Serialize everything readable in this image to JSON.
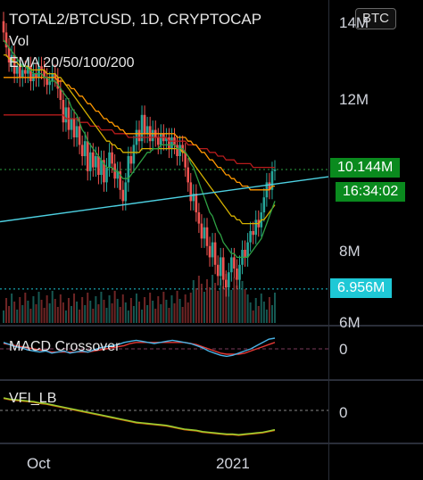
{
  "header": {
    "symbol": "TOTAL2/BTCUSD, 1D, CRYPTOCAP",
    "vol_label": "Vol",
    "ema_label": "EMA 20/50/100/200",
    "btc_badge": "BTC"
  },
  "price_axis": {
    "ticks": [
      "14M",
      "12M",
      "8M",
      "6M"
    ],
    "last_price_tag": "10.144M",
    "countdown_tag": "16:34:02",
    "support_tag": "6.956M"
  },
  "macd": {
    "label": "MACD Crossover",
    "zero_label": "0"
  },
  "vfi": {
    "label": "VFI_LB",
    "zero_label": "0"
  },
  "time_axis": {
    "ticks": [
      "Oct",
      "2021"
    ]
  },
  "colors": {
    "up": "#26a69a",
    "down": "#ef5350",
    "ema20": "#2ea043",
    "ema50": "#d4b000",
    "ema100": "#ff9800",
    "ema200": "#b71c1c",
    "trendline": "#4dd0e1",
    "last_price": "#0a8a1e",
    "support": "#1ec8d6",
    "macd_line": "#4ab3e6",
    "signal_line": "#e53935",
    "vfi_line": "#9acd32"
  },
  "chart_data": {
    "type": "candlestick",
    "title": "TOTAL2/BTCUSD, 1D, CRYPTOCAP",
    "timeframe": "1D",
    "ylabel_unit": "M",
    "y_ticks": [
      6,
      8,
      12,
      14
    ],
    "x_ticks": [
      "Oct",
      "2021"
    ],
    "last_price": 10.144,
    "support_level": 6.956,
    "overlays": [
      "EMA 20",
      "EMA 50",
      "EMA 100",
      "EMA 200"
    ],
    "indicators": [
      "Vol",
      "MACD Crossover",
      "VFI_LB"
    ],
    "close": [
      13.8,
      13.4,
      13.0,
      13.2,
      12.7,
      12.9,
      12.6,
      12.8,
      12.7,
      12.9,
      12.5,
      12.7,
      12.6,
      12.9,
      12.8,
      12.6,
      12.4,
      12.5,
      12.7,
      12.6,
      12.3,
      12.0,
      11.4,
      11.8,
      11.2,
      11.5,
      11.0,
      11.3,
      10.8,
      10.5,
      10.9,
      10.1,
      10.6,
      10.2,
      10.5,
      10.0,
      10.4,
      9.8,
      10.2,
      10.6,
      10.3,
      9.9,
      10.1,
      9.6,
      9.3,
      9.8,
      10.5,
      10.3,
      10.8,
      11.2,
      10.9,
      11.6,
      11.1,
      11.3,
      10.9,
      11.2,
      11.0,
      10.8,
      11.1,
      10.9,
      11.0,
      10.7,
      11.0,
      10.8,
      10.5,
      10.8,
      10.6,
      10.2,
      9.8,
      9.3,
      9.5,
      9.0,
      8.7,
      8.3,
      8.6,
      8.1,
      7.8,
      8.2,
      7.6,
      7.3,
      7.8,
      7.2,
      7.0,
      7.4,
      7.8,
      7.5,
      7.2,
      7.6,
      8.0,
      7.8,
      8.2,
      8.5,
      8.4,
      8.8,
      8.6,
      9.0,
      9.4,
      9.8,
      9.6,
      10.1,
      10.144
    ],
    "ema20": [
      13.6,
      13.5,
      13.4,
      13.3,
      13.2,
      13.1,
      13.0,
      12.9,
      12.9,
      12.8,
      12.8,
      12.7,
      12.7,
      12.7,
      12.7,
      12.6,
      12.6,
      12.5,
      12.5,
      12.5,
      12.4,
      12.3,
      12.2,
      12.1,
      12.0,
      11.8,
      11.7,
      11.6,
      11.4,
      11.2,
      11.1,
      10.9,
      10.8,
      10.7,
      10.6,
      10.5,
      10.4,
      10.3,
      10.2,
      10.2,
      10.2,
      10.1,
      10.1,
      10.0,
      9.9,
      9.9,
      9.9,
      10.0,
      10.1,
      10.2,
      10.3,
      10.4,
      10.5,
      10.6,
      10.6,
      10.7,
      10.7,
      10.7,
      10.8,
      10.8,
      10.8,
      10.8,
      10.8,
      10.8,
      10.7,
      10.7,
      10.7,
      10.6,
      10.5,
      10.3,
      10.2,
      10.0,
      9.8,
      9.6,
      9.4,
      9.2,
      9.0,
      8.9,
      8.7,
      8.5,
      8.4,
      8.2,
      8.1,
      8.0,
      7.9,
      7.9,
      7.8,
      7.8,
      7.8,
      7.8,
      7.8,
      7.9,
      8.0,
      8.1,
      8.2,
      8.3,
      8.5,
      8.7,
      8.9,
      9.1,
      9.3
    ],
    "ema50": [
      13.2,
      13.2,
      13.1,
      13.1,
      13.0,
      13.0,
      12.9,
      12.9,
      12.9,
      12.9,
      12.8,
      12.8,
      12.8,
      12.8,
      12.8,
      12.8,
      12.7,
      12.7,
      12.7,
      12.7,
      12.6,
      12.6,
      12.5,
      12.4,
      12.3,
      12.2,
      12.1,
      12.0,
      11.9,
      11.8,
      11.7,
      11.6,
      11.5,
      11.4,
      11.3,
      11.2,
      11.1,
      11.0,
      10.9,
      10.9,
      10.8,
      10.8,
      10.7,
      10.7,
      10.6,
      10.6,
      10.6,
      10.6,
      10.6,
      10.6,
      10.6,
      10.7,
      10.7,
      10.7,
      10.7,
      10.7,
      10.7,
      10.7,
      10.7,
      10.7,
      10.7,
      10.7,
      10.7,
      10.7,
      10.7,
      10.7,
      10.6,
      10.6,
      10.5,
      10.4,
      10.3,
      10.2,
      10.1,
      10.0,
      9.9,
      9.8,
      9.7,
      9.6,
      9.5,
      9.4,
      9.3,
      9.2,
      9.1,
      9.0,
      8.9,
      8.9,
      8.8,
      8.8,
      8.7,
      8.7,
      8.7,
      8.7,
      8.7,
      8.7,
      8.7,
      8.8,
      8.8,
      8.9,
      9.0,
      9.1,
      9.2
    ],
    "ema100": [
      12.6,
      12.6,
      12.6,
      12.6,
      12.6,
      12.6,
      12.6,
      12.6,
      12.6,
      12.6,
      12.6,
      12.6,
      12.6,
      12.6,
      12.6,
      12.6,
      12.6,
      12.6,
      12.6,
      12.6,
      12.5,
      12.5,
      12.5,
      12.4,
      12.4,
      12.3,
      12.3,
      12.2,
      12.1,
      12.1,
      12.0,
      11.9,
      11.9,
      11.8,
      11.7,
      11.7,
      11.6,
      11.5,
      11.5,
      11.4,
      11.4,
      11.3,
      11.3,
      11.2,
      11.2,
      11.1,
      11.1,
      11.1,
      11.1,
      11.1,
      11.1,
      11.1,
      11.1,
      11.1,
      11.1,
      11.1,
      11.1,
      11.1,
      11.1,
      11.1,
      11.1,
      11.1,
      11.1,
      11.1,
      11.0,
      11.0,
      11.0,
      11.0,
      10.9,
      10.9,
      10.8,
      10.8,
      10.7,
      10.6,
      10.6,
      10.5,
      10.4,
      10.4,
      10.3,
      10.2,
      10.2,
      10.1,
      10.0,
      10.0,
      9.9,
      9.9,
      9.8,
      9.8,
      9.7,
      9.7,
      9.7,
      9.6,
      9.6,
      9.6,
      9.6,
      9.6,
      9.6,
      9.6,
      9.6,
      9.7,
      9.7
    ],
    "ema200": [
      11.6,
      11.6,
      11.6,
      11.6,
      11.6,
      11.6,
      11.6,
      11.6,
      11.6,
      11.6,
      11.6,
      11.6,
      11.6,
      11.6,
      11.6,
      11.6,
      11.6,
      11.6,
      11.6,
      11.6,
      11.6,
      11.6,
      11.6,
      11.5,
      11.5,
      11.5,
      11.5,
      11.5,
      11.4,
      11.4,
      11.4,
      11.4,
      11.3,
      11.3,
      11.3,
      11.3,
      11.2,
      11.2,
      11.2,
      11.2,
      11.2,
      11.1,
      11.1,
      11.1,
      11.1,
      11.1,
      11.0,
      11.0,
      11.0,
      11.0,
      11.0,
      11.0,
      11.0,
      11.0,
      11.0,
      11.0,
      11.0,
      11.0,
      11.0,
      11.0,
      11.0,
      10.9,
      10.9,
      10.9,
      10.9,
      10.9,
      10.9,
      10.9,
      10.8,
      10.8,
      10.8,
      10.8,
      10.7,
      10.7,
      10.7,
      10.7,
      10.6,
      10.6,
      10.6,
      10.5,
      10.5,
      10.5,
      10.4,
      10.4,
      10.4,
      10.4,
      10.3,
      10.3,
      10.3,
      10.3,
      10.3,
      10.3,
      10.2,
      10.2,
      10.2,
      10.2,
      10.2,
      10.2,
      10.2,
      10.2,
      10.2
    ],
    "trendline": {
      "start": 8.75,
      "end": 9.95
    },
    "macd_line": [
      0.6,
      0.4,
      0.2,
      0.1,
      -0.1,
      -0.2,
      -0.3,
      -0.2,
      -0.4,
      -0.3,
      -0.2,
      -0.4,
      -0.3,
      -0.2,
      -0.3,
      -0.1,
      0.1,
      0.2,
      0.3,
      0.4,
      0.6,
      0.7,
      0.8,
      0.7,
      0.6,
      0.5,
      0.6,
      0.7,
      0.8,
      0.7,
      0.6,
      0.5,
      0.3,
      0.1,
      -0.2,
      -0.4,
      -0.6,
      -0.7,
      -0.6,
      -0.4,
      -0.2,
      0.0,
      0.3,
      0.6,
      0.9,
      1.0
    ],
    "signal_line": [
      0.5,
      0.4,
      0.3,
      0.2,
      0.1,
      0.0,
      -0.1,
      -0.2,
      -0.3,
      -0.3,
      -0.3,
      -0.3,
      -0.3,
      -0.3,
      -0.3,
      -0.2,
      -0.1,
      0.0,
      0.1,
      0.2,
      0.3,
      0.5,
      0.6,
      0.6,
      0.6,
      0.6,
      0.6,
      0.6,
      0.6,
      0.6,
      0.6,
      0.5,
      0.4,
      0.2,
      0.0,
      -0.2,
      -0.4,
      -0.5,
      -0.5,
      -0.5,
      -0.4,
      -0.2,
      0.0,
      0.2,
      0.4,
      0.6
    ],
    "vfi_line": [
      1.0,
      0.9,
      0.85,
      0.8,
      0.75,
      0.7,
      0.6,
      0.55,
      0.45,
      0.35,
      0.25,
      0.15,
      0.05,
      -0.05,
      -0.15,
      -0.25,
      -0.35,
      -0.45,
      -0.55,
      -0.65,
      -0.75,
      -0.85,
      -0.95,
      -1.0,
      -1.05,
      -1.1,
      -1.15,
      -1.2,
      -1.3,
      -1.4,
      -1.5,
      -1.55,
      -1.6,
      -1.7,
      -1.75,
      -1.8,
      -1.85,
      -1.9,
      -1.9,
      -1.95,
      -1.9,
      -1.85,
      -1.8,
      -1.75,
      -1.65,
      -1.55
    ]
  }
}
